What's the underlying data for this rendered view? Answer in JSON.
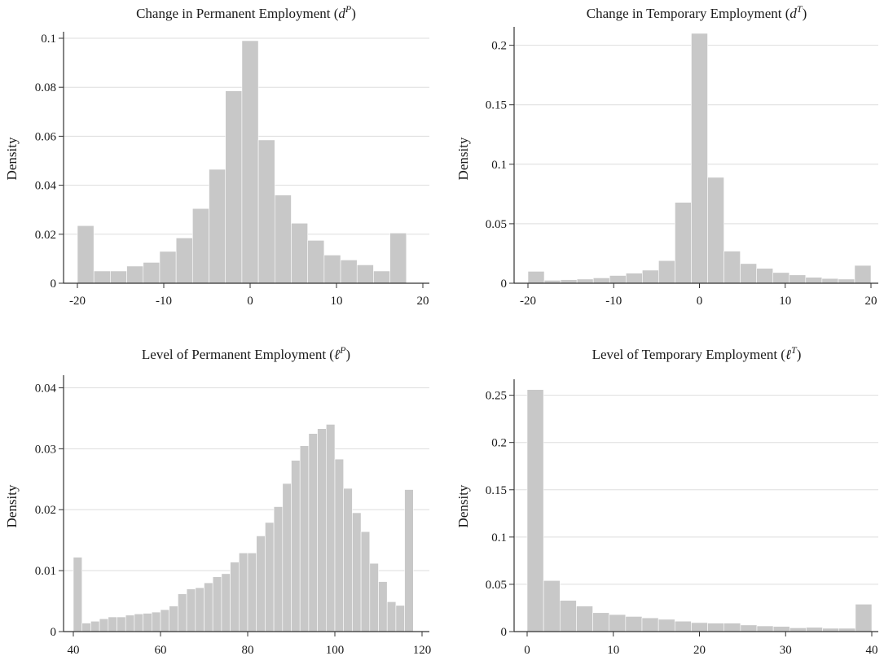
{
  "chart_data": [
    {
      "type": "bar",
      "title_main": "Change in Permanent Employment (",
      "title_var": "d",
      "title_sup": "P",
      "title_end": ")",
      "ylabel": "Density",
      "xlim": [
        -20,
        20
      ],
      "ylim": [
        0,
        0.1
      ],
      "xticks": [
        -20,
        -10,
        0,
        10,
        20
      ],
      "xtick_labels": [
        "-20",
        "-10",
        "0",
        "10",
        "20"
      ],
      "yticks": [
        0,
        0.02,
        0.04,
        0.06,
        0.08,
        0.1
      ],
      "ytick_labels": [
        "0",
        "0.02",
        "0.04",
        "0.06",
        "0.08",
        "0.1"
      ],
      "bin_start": -20,
      "bin_width": 1.9048,
      "values": [
        0.0235,
        0.005,
        0.005,
        0.007,
        0.0085,
        0.013,
        0.0185,
        0.0305,
        0.0465,
        0.0785,
        0.099,
        0.0585,
        0.036,
        0.0245,
        0.0175,
        0.0115,
        0.0095,
        0.0075,
        0.005,
        0.0205
      ]
    },
    {
      "type": "bar",
      "title_main": "Change in Temporary Employment (",
      "title_var": "d",
      "title_sup": "T",
      "title_end": ")",
      "ylabel": "Density",
      "xlim": [
        -20,
        20
      ],
      "ylim": [
        0,
        0.21
      ],
      "xticks": [
        -20,
        -10,
        0,
        10,
        20
      ],
      "xtick_labels": [
        "-20",
        "-10",
        "0",
        "10",
        "20"
      ],
      "yticks": [
        0,
        0.05,
        0.1,
        0.15,
        0.2
      ],
      "ytick_labels": [
        "0",
        "0.05",
        "0.1",
        "0.15",
        "0.2"
      ],
      "bin_start": -20,
      "bin_width": 1.9048,
      "values": [
        0.01,
        0.0025,
        0.003,
        0.0035,
        0.0045,
        0.0065,
        0.0085,
        0.011,
        0.019,
        0.068,
        0.21,
        0.089,
        0.027,
        0.0165,
        0.0125,
        0.009,
        0.007,
        0.005,
        0.004,
        0.0035,
        0.015
      ]
    },
    {
      "type": "bar",
      "title_main": "Level of Permanent Employment (",
      "title_var": "ℓ",
      "title_sup": "P",
      "title_end": ")",
      "ylabel": "Density",
      "xlim": [
        40,
        120
      ],
      "ylim": [
        0,
        0.041
      ],
      "xticks": [
        40,
        60,
        80,
        100,
        120
      ],
      "xtick_labels": [
        "40",
        "60",
        "80",
        "100",
        "120"
      ],
      "yticks": [
        0,
        0.01,
        0.02,
        0.03,
        0.04
      ],
      "ytick_labels": [
        "0",
        "0.01",
        "0.02",
        "0.03",
        "0.04"
      ],
      "bin_start": 40,
      "bin_width": 2.0,
      "values": [
        0.0122,
        0.0014,
        0.0017,
        0.0021,
        0.0024,
        0.0024,
        0.0027,
        0.0029,
        0.003,
        0.0032,
        0.0036,
        0.0042,
        0.0062,
        0.007,
        0.0072,
        0.008,
        0.009,
        0.0095,
        0.0114,
        0.0129,
        0.0129,
        0.0157,
        0.0179,
        0.0205,
        0.0243,
        0.0281,
        0.0305,
        0.0325,
        0.0333,
        0.034,
        0.0283,
        0.0235,
        0.0195,
        0.0164,
        0.0112,
        0.0082,
        0.0049,
        0.0043,
        0.0233
      ]
    },
    {
      "type": "bar",
      "title_main": "Level of Temporary Employment (",
      "title_var": "ℓ",
      "title_sup": "T",
      "title_end": ")",
      "ylabel": "Density",
      "xlim": [
        0,
        40
      ],
      "ylim": [
        0,
        0.26
      ],
      "xticks": [
        0,
        10,
        20,
        30,
        40
      ],
      "xtick_labels": [
        "0",
        "10",
        "20",
        "30",
        "40"
      ],
      "yticks": [
        0,
        0.05,
        0.1,
        0.15,
        0.2,
        0.25
      ],
      "ytick_labels": [
        "0",
        "0.05",
        "0.1",
        "0.15",
        "0.2",
        "0.25"
      ],
      "bin_start": 0,
      "bin_width": 1.9048,
      "values": [
        0.256,
        0.054,
        0.033,
        0.027,
        0.02,
        0.018,
        0.016,
        0.0145,
        0.013,
        0.011,
        0.0095,
        0.009,
        0.009,
        0.007,
        0.006,
        0.0055,
        0.004,
        0.0045,
        0.0035,
        0.0035,
        0.029
      ]
    }
  ]
}
